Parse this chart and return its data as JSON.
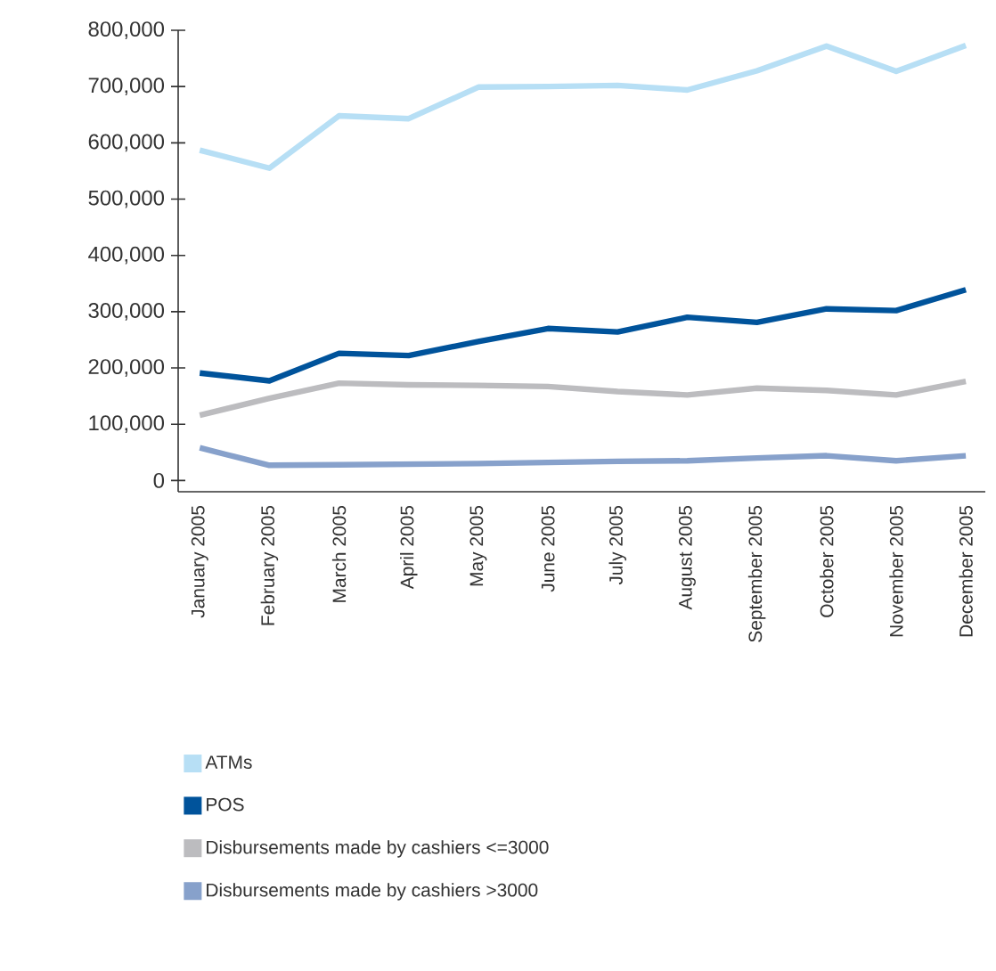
{
  "chart_data": {
    "type": "line",
    "categories": [
      "January 2005",
      "February 2005",
      "March 2005",
      "April 2005",
      "May 2005",
      "June 2005",
      "July 2005",
      "August 2005",
      "September 2005",
      "October 2005",
      "November 2005",
      "December 2005"
    ],
    "series": [
      {
        "name": "ATMs",
        "color": "#b7dff5",
        "values": [
          587000,
          555000,
          648000,
          643000,
          699000,
          700000,
          702000,
          694000,
          728000,
          772000,
          727000,
          773000
        ]
      },
      {
        "name": "POS",
        "color": "#00539b",
        "values": [
          191000,
          177000,
          226000,
          222000,
          247000,
          270000,
          264000,
          290000,
          281000,
          305000,
          302000,
          339000
        ]
      },
      {
        "name": "Disbursements made by cashiers <=3000",
        "color": "#bcbcbf",
        "values": [
          116000,
          146000,
          173000,
          170000,
          169000,
          167000,
          158000,
          152000,
          164000,
          160000,
          152000,
          176000
        ]
      },
      {
        "name": "Disbursements made by cashiers >3000",
        "color": "#87a1cb",
        "values": [
          58000,
          27000,
          28000,
          29000,
          30000,
          32000,
          34000,
          35000,
          40000,
          44000,
          35000,
          44000
        ]
      }
    ],
    "ylim": [
      -20000,
      800000
    ],
    "yticks": [
      {
        "value": 0,
        "label": "0"
      },
      {
        "value": 100000,
        "label": "100,000"
      },
      {
        "value": 200000,
        "label": "200,000"
      },
      {
        "value": 300000,
        "label": "300,000"
      },
      {
        "value": 400000,
        "label": "400,000"
      },
      {
        "value": 500000,
        "label": "500,000"
      },
      {
        "value": 600000,
        "label": "600,000"
      },
      {
        "value": 700000,
        "label": "700,000"
      },
      {
        "value": 800000,
        "label": "800,000"
      }
    ],
    "legend": "bottom",
    "grid": false,
    "marker": "none",
    "line_style": "solid"
  }
}
